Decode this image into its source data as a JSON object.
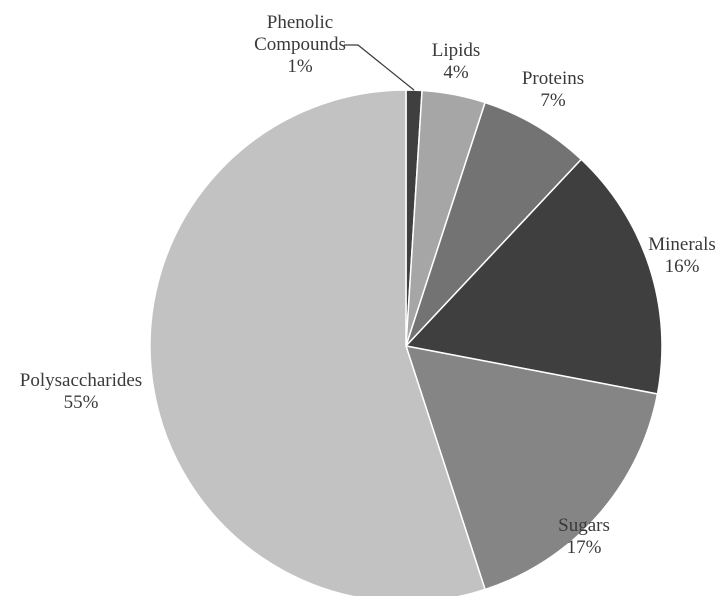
{
  "chart_data": {
    "type": "pie",
    "title": "",
    "start": "top, clockwise",
    "legend": "none",
    "slices": [
      {
        "label_lines": [
          "Phenolic",
          "Compounds"
        ],
        "pct_label": "1%",
        "value": 1,
        "color": "#3f3f3f"
      },
      {
        "label_lines": [
          "Lipids"
        ],
        "pct_label": "4%",
        "value": 4,
        "color": "#a6a6a6"
      },
      {
        "label_lines": [
          "Proteins"
        ],
        "pct_label": "7%",
        "value": 7,
        "color": "#737373"
      },
      {
        "label_lines": [
          "Minerals"
        ],
        "pct_label": "16%",
        "value": 16,
        "color": "#3f3f3f"
      },
      {
        "label_lines": [
          "Sugars"
        ],
        "pct_label": "17%",
        "value": 17,
        "color": "#858585"
      },
      {
        "label_lines": [
          "Polysaccharides"
        ],
        "pct_label": "55%",
        "value": 55,
        "color": "#c2c2c2"
      }
    ]
  }
}
